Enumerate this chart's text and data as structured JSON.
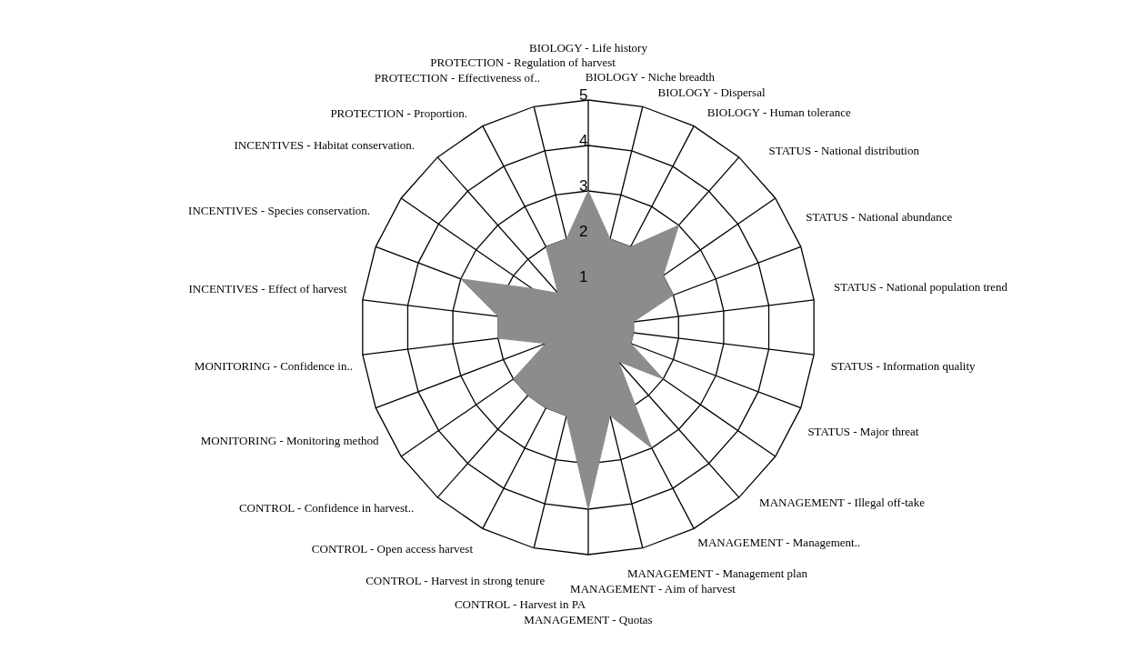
{
  "chart_data": {
    "type": "radar",
    "categories": [
      "BIOLOGY - Life history",
      "BIOLOGY - Niche breadth",
      "BIOLOGY - Dispersal",
      "BIOLOGY - Human tolerance",
      "STATUS - National distribution",
      "STATUS - National abundance",
      "STATUS - National population trend",
      "STATUS - Information quality",
      "STATUS - Major threat",
      "MANAGEMENT - Illegal off-take",
      "MANAGEMENT - Management..",
      "MANAGEMENT - Management plan",
      "MANAGEMENT - Aim of harvest",
      "MANAGEMENT - Quotas",
      "CONTROL - Harvest in PA",
      "CONTROL - Harvest in strong tenure",
      "CONTROL - Open access harvest",
      "CONTROL - Confidence in harvest..",
      "MONITORING - Monitoring method",
      "MONITORING - Confidence in..",
      "INCENTIVES - Effect of harvest",
      "INCENTIVES - Species conservation.",
      "INCENTIVES - Habitat conservation.",
      "PROTECTION - Proportion.",
      "PROTECTION - Effectiveness of..",
      "PROTECTION - Regulation of harvest"
    ],
    "series": [
      {
        "color": "#8c8c8c",
        "values": [
          3,
          2,
          2,
          3,
          2,
          2,
          1,
          1,
          1,
          2,
          1,
          3,
          2,
          4,
          2,
          2,
          2,
          2,
          1,
          2,
          2,
          3,
          1.5,
          1,
          2,
          2
        ]
      }
    ],
    "ylim": [
      0,
      5
    ],
    "yticks": [
      1,
      2,
      3,
      4,
      5
    ],
    "grid": true,
    "legend": false
  }
}
